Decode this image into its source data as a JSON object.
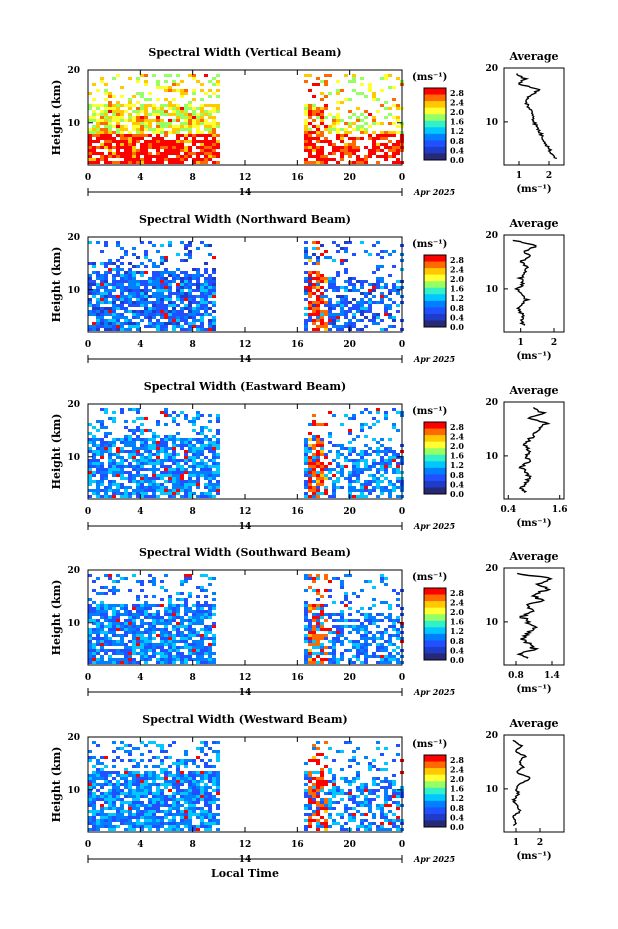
{
  "chart_data": [
    {
      "type": "heatmap",
      "title": "Spectral Width (Vertical Beam)",
      "ylabel": "Height (km)",
      "y_ticks": [
        "20",
        "10"
      ],
      "x_ticks": [
        "0",
        "4",
        "8",
        "12",
        "16",
        "20",
        "0"
      ],
      "date_day": "14",
      "date_label": "Apr 2025",
      "ylim": [
        2,
        20
      ],
      "xlim": [
        0,
        24
      ],
      "data_gap_hours": [
        10,
        16.5
      ],
      "colorbar": {
        "unit": "(ms⁻¹)",
        "ticks": [
          "2.8",
          "2.4",
          "2.0",
          "1.6",
          "1.2",
          "0.8",
          "0.4",
          "0.0"
        ],
        "range": [
          0,
          3.0
        ],
        "colors": [
          "#ff0000",
          "#ff6a00",
          "#ffc800",
          "#ffff32",
          "#96ff64",
          "#32f0c8",
          "#00c8ff",
          "#0080ff",
          "#2050ff",
          "#1e3cc8",
          "#282878"
        ]
      },
      "average_profile": {
        "title": "Average",
        "xlabel": "(ms⁻¹)",
        "x_ticks": [
          "1",
          "2"
        ],
        "xlim": [
          0.5,
          2.5
        ],
        "height_km": [
          19,
          18,
          17,
          16,
          15,
          14,
          13,
          12,
          11,
          10,
          9,
          8,
          7,
          6,
          5,
          4,
          3
        ],
        "values": [
          0.9,
          1.2,
          1.0,
          1.7,
          1.4,
          1.2,
          1.3,
          1.4,
          1.5,
          1.5,
          1.6,
          1.7,
          1.8,
          1.9,
          2.0,
          2.1,
          2.3
        ]
      }
    },
    {
      "type": "heatmap",
      "title": "Spectral Width (Northward Beam)",
      "ylabel": "Height (km)",
      "y_ticks": [
        "20",
        "10"
      ],
      "x_ticks": [
        "0",
        "4",
        "8",
        "12",
        "16",
        "20",
        "0"
      ],
      "date_day": "14",
      "date_label": "Apr 2025",
      "ylim": [
        2,
        20
      ],
      "xlim": [
        0,
        24
      ],
      "data_gap_hours": [
        9.5,
        16.5
      ],
      "colorbar": {
        "unit": "(ms⁻¹)",
        "ticks": [
          "2.8",
          "2.4",
          "2.0",
          "1.6",
          "1.2",
          "0.8",
          "0.4",
          "0.0"
        ],
        "range": [
          0,
          3.0
        ],
        "colors": [
          "#ff0000",
          "#ff6a00",
          "#ffc800",
          "#ffff32",
          "#96ff64",
          "#32f0c8",
          "#00c8ff",
          "#0080ff",
          "#2050ff",
          "#1e3cc8",
          "#282878"
        ]
      },
      "average_profile": {
        "title": "Average",
        "xlabel": "(ms⁻¹)",
        "x_ticks": [
          "1",
          "2"
        ],
        "xlim": [
          0.5,
          2.3
        ],
        "height_km": [
          19,
          18,
          17,
          16,
          15,
          14,
          13,
          12,
          11,
          10,
          9,
          8,
          7,
          6,
          5,
          4,
          3
        ],
        "values": [
          0.8,
          1.5,
          1.1,
          1.3,
          1.0,
          1.2,
          1.1,
          1.0,
          1.1,
          0.9,
          1.0,
          1.2,
          1.0,
          0.9,
          1.1,
          1.0,
          1.1
        ]
      }
    },
    {
      "type": "heatmap",
      "title": "Spectral Width (Eastward Beam)",
      "ylabel": "Height (km)",
      "y_ticks": [
        "20",
        "10"
      ],
      "x_ticks": [
        "0",
        "4",
        "8",
        "12",
        "16",
        "20",
        "0"
      ],
      "date_day": "14",
      "date_label": "Apr 2025",
      "ylim": [
        2,
        20
      ],
      "xlim": [
        0,
        24
      ],
      "data_gap_hours": [
        10,
        16.5
      ],
      "colorbar": {
        "unit": "(ms⁻¹)",
        "ticks": [
          "2.8",
          "2.4",
          "2.0",
          "1.6",
          "1.2",
          "0.8",
          "0.4",
          "0.0"
        ],
        "range": [
          0,
          3.0
        ],
        "colors": [
          "#ff0000",
          "#ff6a00",
          "#ffc800",
          "#ffff32",
          "#96ff64",
          "#32f0c8",
          "#00c8ff",
          "#0080ff",
          "#2050ff",
          "#1e3cc8",
          "#282878"
        ]
      },
      "average_profile": {
        "title": "Average",
        "xlabel": "(ms⁻¹)",
        "x_ticks": [
          "0.4",
          "1.6"
        ],
        "xlim": [
          0.3,
          1.7
        ],
        "height_km": [
          19,
          18,
          17,
          16,
          15,
          14,
          13,
          12,
          11,
          10,
          9,
          8,
          7,
          6,
          5,
          4,
          3
        ],
        "values": [
          1.0,
          1.2,
          0.9,
          1.3,
          1.1,
          1.0,
          0.9,
          0.8,
          0.9,
          0.8,
          0.9,
          0.7,
          0.8,
          0.9,
          0.8,
          0.7,
          0.8
        ]
      }
    },
    {
      "type": "heatmap",
      "title": "Spectral Width (Southward Beam)",
      "ylabel": "Height (km)",
      "y_ticks": [
        "20",
        "10"
      ],
      "x_ticks": [
        "0",
        "4",
        "8",
        "12",
        "16",
        "20",
        "0"
      ],
      "date_day": "14",
      "date_label": "Apr 2025",
      "ylim": [
        2,
        20
      ],
      "xlim": [
        0,
        24
      ],
      "data_gap_hours": [
        9.5,
        16.5
      ],
      "colorbar": {
        "unit": "(ms⁻¹)",
        "ticks": [
          "2.8",
          "2.4",
          "2.0",
          "1.6",
          "1.2",
          "0.8",
          "0.4",
          "0.0"
        ],
        "range": [
          0,
          3.0
        ],
        "colors": [
          "#ff0000",
          "#ff6a00",
          "#ffc800",
          "#ffff32",
          "#96ff64",
          "#32f0c8",
          "#00c8ff",
          "#0080ff",
          "#2050ff",
          "#1e3cc8",
          "#282878"
        ]
      },
      "average_profile": {
        "title": "Average",
        "xlabel": "(ms⁻¹)",
        "x_ticks": [
          "0.8",
          "1.4"
        ],
        "xlim": [
          0.6,
          1.6
        ],
        "height_km": [
          19,
          18,
          17,
          16,
          15,
          14,
          13,
          12,
          11,
          10,
          9,
          8,
          7,
          6,
          5,
          4,
          3
        ],
        "values": [
          0.8,
          1.4,
          1.2,
          1.3,
          1.1,
          1.2,
          1.0,
          1.1,
          0.9,
          1.0,
          1.1,
          1.0,
          0.9,
          1.0,
          1.1,
          0.9,
          1.0
        ]
      }
    },
    {
      "type": "heatmap",
      "title": "Spectral Width (Westward Beam)",
      "ylabel": "Height (km)",
      "y_ticks": [
        "20",
        "10"
      ],
      "x_ticks": [
        "0",
        "4",
        "8",
        "12",
        "16",
        "20",
        "0"
      ],
      "date_day": "14",
      "date_label": "Apr 2025",
      "xlabel": "Local Time",
      "ylim": [
        2,
        20
      ],
      "xlim": [
        0,
        24
      ],
      "data_gap_hours": [
        10,
        16.5
      ],
      "colorbar": {
        "unit": "(ms⁻¹)",
        "ticks": [
          "2.8",
          "2.4",
          "2.0",
          "1.6",
          "1.2",
          "0.8",
          "0.4",
          "0.0"
        ],
        "range": [
          0,
          3.0
        ],
        "colors": [
          "#ff0000",
          "#ff6a00",
          "#ffc800",
          "#ffff32",
          "#96ff64",
          "#32f0c8",
          "#00c8ff",
          "#0080ff",
          "#2050ff",
          "#1e3cc8",
          "#282878"
        ]
      },
      "average_profile": {
        "title": "Average",
        "xlabel": "(ms⁻¹)",
        "x_ticks": [
          "1",
          "2"
        ],
        "xlim": [
          0.5,
          3.0
        ],
        "height_km": [
          19,
          18,
          17,
          16,
          15,
          14,
          13,
          12,
          11,
          10,
          9,
          8,
          7,
          6,
          5,
          4,
          3
        ],
        "values": [
          0.9,
          1.2,
          1.0,
          1.4,
          1.1,
          1.3,
          1.0,
          1.6,
          1.2,
          1.0,
          1.1,
          0.9,
          1.0,
          1.2,
          0.9,
          1.0,
          0.9
        ]
      }
    }
  ]
}
